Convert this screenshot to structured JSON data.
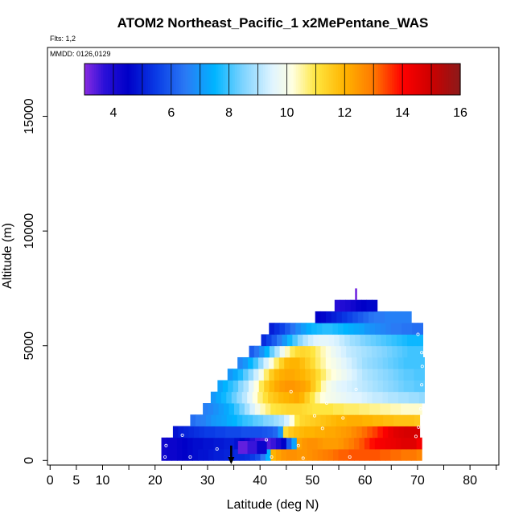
{
  "chart_data": {
    "type": "heatmap",
    "title": "ATOM2 Northeast_Pacific_1 x2MePentane_WAS",
    "flights_label": "Flts: 1,2",
    "mmdd_label": "MMDD: 0126,0129",
    "xlabel": "Latitude (deg N)",
    "ylabel": "Altitude (m)",
    "xlim": [
      -0.5,
      85.5
    ],
    "ylim": [
      -200,
      18000
    ],
    "x_ticks": [
      0,
      5,
      10,
      20,
      30,
      40,
      50,
      60,
      70,
      80
    ],
    "x_minor_ticks": [
      15,
      25,
      35,
      45,
      55,
      65,
      75,
      85
    ],
    "y_ticks": [
      0,
      5000,
      10000,
      15000
    ],
    "colorbar": {
      "min": 3,
      "max": 16,
      "ticks": [
        4,
        6,
        8,
        10,
        12,
        14,
        16
      ],
      "stops": [
        {
          "v": 3.0,
          "c": "#8a2be2"
        },
        {
          "v": 3.7,
          "c": "#2a10d8"
        },
        {
          "v": 4.5,
          "c": "#0000c8"
        },
        {
          "v": 5.5,
          "c": "#0a3ce6"
        },
        {
          "v": 6.5,
          "c": "#2a7af5"
        },
        {
          "v": 7.5,
          "c": "#00b4ff"
        },
        {
          "v": 8.5,
          "c": "#80d4ff"
        },
        {
          "v": 9.5,
          "c": "#e0f4ff"
        },
        {
          "v": 10.2,
          "c": "#ffffe0"
        },
        {
          "v": 11.0,
          "c": "#ffe640"
        },
        {
          "v": 12.0,
          "c": "#ffb400"
        },
        {
          "v": 13.0,
          "c": "#ff7800"
        },
        {
          "v": 14.0,
          "c": "#ff0000"
        },
        {
          "v": 15.0,
          "c": "#cc0000"
        },
        {
          "v": 16.0,
          "c": "#8b1a1a"
        }
      ]
    },
    "layers": [
      {
        "alt": [
          0,
          500
        ],
        "lat": [
          21.2,
          70.8
        ],
        "values": [
          4.2,
          4.3,
          4.3,
          4.4,
          4.5,
          4.6,
          4.7,
          4.8,
          4.8,
          4.9,
          5.0,
          5.0,
          5.1,
          5.1,
          5.2,
          5.2,
          5.3,
          5.5,
          5.8,
          6.5,
          7.5,
          12.0,
          12.3,
          12.5,
          12.6,
          12.6,
          12.5,
          12.5,
          12.6,
          12.7,
          12.8,
          12.9,
          13.0,
          13.1,
          13.2,
          13.2,
          13.3,
          13.3,
          13.3,
          13.3,
          13.3,
          13.3,
          13.2,
          13.2,
          13.1,
          13.1,
          13.0,
          13.0,
          13.0,
          12.8
        ]
      },
      {
        "alt": [
          500,
          1000
        ],
        "lat": [
          21.2,
          70.8
        ],
        "values": [
          4.2,
          4.3,
          4.3,
          4.4,
          4.5,
          4.6,
          4.7,
          4.7,
          4.8,
          4.8,
          4.9,
          4.9,
          5.0,
          5.0,
          4.8,
          4.6,
          4.2,
          3.8,
          3.5,
          3.4,
          3.4,
          3.6,
          4.0,
          4.5,
          6.0,
          7.2,
          12.3,
          12.5,
          12.6,
          12.6,
          12.5,
          12.4,
          12.4,
          12.4,
          12.5,
          12.7,
          12.9,
          13.1,
          13.3,
          13.6,
          13.9,
          14.1,
          14.2,
          14.3,
          14.4,
          14.5,
          14.6,
          14.6,
          14.6,
          14.2
        ]
      },
      {
        "alt": [
          1000,
          1500
        ],
        "lat": [
          23.4,
          70.4
        ],
        "values": [
          4.8,
          5.0,
          5.1,
          5.2,
          5.3,
          5.4,
          5.5,
          5.5,
          5.6,
          5.6,
          5.7,
          5.7,
          5.7,
          5.8,
          5.8,
          5.8,
          5.8,
          5.9,
          6.0,
          6.2,
          7.0,
          11.2,
          11.6,
          11.8,
          11.9,
          12.0,
          12.0,
          12.1,
          12.1,
          12.2,
          12.2,
          12.3,
          12.4,
          12.5,
          12.7,
          12.9,
          13.1,
          13.3,
          13.5,
          13.8,
          14.1,
          14.4,
          14.6,
          14.7,
          14.8,
          14.8,
          14.8
        ]
      },
      {
        "alt": [
          1500,
          2000
        ],
        "lat": [
          26.7,
          70.4
        ],
        "values": [
          6.3,
          6.5,
          6.6,
          6.8,
          7.0,
          7.1,
          7.2,
          7.4,
          7.5,
          7.7,
          7.9,
          8.0,
          8.2,
          8.3,
          8.5,
          8.6,
          8.8,
          9.0,
          9.4,
          10.2,
          11.0,
          11.3,
          11.4,
          11.5,
          11.6,
          11.7,
          11.8,
          11.9,
          12.0,
          12.0,
          12.1,
          12.1,
          12.1,
          12.0,
          12.0,
          11.9,
          11.9,
          11.8,
          11.8,
          11.7,
          11.7,
          11.7,
          11.7,
          11.6
        ]
      },
      {
        "alt": [
          2000,
          2500
        ],
        "lat": [
          29.1,
          70.8
        ],
        "values": [
          6.6,
          6.7,
          6.9,
          7.1,
          7.3,
          7.6,
          8.0,
          8.4,
          8.9,
          9.4,
          9.9,
          10.4,
          10.7,
          11.0,
          11.1,
          11.2,
          11.3,
          11.3,
          11.3,
          11.2,
          11.1,
          11.0,
          11.0,
          11.0,
          11.0,
          10.9,
          10.9,
          10.8,
          10.8,
          10.8,
          10.7,
          10.7,
          10.6,
          10.6,
          10.5,
          10.5,
          10.4,
          10.4,
          10.3,
          10.3,
          10.3,
          10.3
        ]
      },
      {
        "alt": [
          2500,
          3000
        ],
        "lat": [
          30.6,
          71.3
        ],
        "values": [
          7.0,
          7.3,
          7.6,
          7.9,
          8.3,
          8.7,
          9.1,
          9.6,
          10.2,
          10.7,
          11.1,
          11.5,
          11.7,
          11.9,
          12.0,
          12.1,
          12.2,
          12.0,
          11.5,
          11.0,
          10.5,
          10.2,
          10.0,
          9.9,
          9.8,
          9.7,
          9.6,
          9.5,
          9.5,
          9.4,
          9.3,
          9.2,
          9.2,
          9.1,
          9.0,
          9.0,
          8.9,
          8.9,
          8.8,
          8.8,
          8.7
        ]
      },
      {
        "alt": [
          3000,
          3500
        ],
        "lat": [
          31.9,
          71.3
        ],
        "values": [
          7.2,
          7.5,
          7.8,
          8.1,
          8.6,
          9.0,
          9.6,
          10.2,
          10.9,
          11.5,
          11.9,
          12.2,
          12.4,
          12.5,
          12.5,
          12.4,
          12.3,
          12.1,
          11.6,
          11.0,
          10.4,
          10.0,
          9.8,
          9.6,
          9.5,
          9.4,
          9.3,
          9.2,
          9.1,
          9.0,
          8.9,
          8.8,
          8.7,
          8.6,
          8.5,
          8.4,
          8.3,
          8.3,
          8.2,
          8.2
        ]
      },
      {
        "alt": [
          3500,
          4000
        ],
        "lat": [
          33.8,
          71.3
        ],
        "values": [
          7.0,
          7.3,
          7.7,
          8.2,
          8.7,
          9.3,
          10.0,
          10.8,
          11.5,
          11.9,
          12.1,
          12.2,
          12.2,
          12.1,
          12.0,
          11.8,
          11.6,
          11.2,
          10.8,
          10.4,
          10.2,
          10.0,
          9.8,
          9.6,
          9.4,
          9.2,
          9.0,
          8.9,
          8.8,
          8.7,
          8.6,
          8.5,
          8.4,
          8.3,
          8.2,
          8.2,
          8.1,
          8.1
        ]
      },
      {
        "alt": [
          4000,
          4500
        ],
        "lat": [
          35.7,
          71.3
        ],
        "values": [
          6.7,
          7.0,
          7.5,
          8.0,
          8.7,
          9.4,
          10.1,
          10.8,
          11.4,
          11.9,
          12.0,
          12.0,
          11.8,
          11.5,
          11.2,
          10.8,
          10.5,
          10.2,
          10.0,
          9.8,
          9.6,
          9.4,
          9.2,
          9.0,
          8.8,
          8.7,
          8.6,
          8.5,
          8.4,
          8.3,
          8.2,
          8.1,
          8.0,
          8.0,
          8.0,
          8.0
        ]
      },
      {
        "alt": [
          4500,
          5000
        ],
        "lat": [
          37.9,
          71.0
        ],
        "values": [
          6.0,
          6.4,
          6.9,
          7.5,
          8.3,
          9.0,
          9.8,
          10.4,
          10.9,
          11.2,
          11.3,
          11.2,
          11.0,
          10.7,
          10.4,
          10.1,
          9.8,
          9.6,
          9.4,
          9.2,
          9.1,
          9.0,
          8.9,
          8.8,
          8.7,
          8.6,
          8.5,
          8.4,
          8.3,
          8.2,
          8.1,
          8.0,
          8.0,
          8.0
        ]
      },
      {
        "alt": [
          5000,
          5500
        ],
        "lat": [
          40.2,
          71.0
        ],
        "values": [
          5.2,
          5.6,
          6.0,
          6.5,
          7.0,
          7.6,
          8.1,
          8.6,
          9.0,
          9.3,
          9.5,
          9.6,
          9.6,
          9.5,
          9.4,
          9.2,
          9.0,
          8.8,
          8.7,
          8.5,
          8.4,
          8.3,
          8.2,
          8.1,
          8.0,
          7.9,
          7.8,
          7.7,
          7.6,
          7.6,
          7.6
        ]
      },
      {
        "alt": [
          5500,
          6000
        ],
        "lat": [
          41.7,
          71.0
        ],
        "values": [
          5.0,
          5.3,
          5.6,
          6.0,
          6.4,
          6.8,
          7.1,
          7.4,
          7.6,
          7.7,
          7.8,
          7.8,
          7.7,
          7.6,
          7.5,
          7.4,
          7.3,
          7.2,
          7.0,
          6.9,
          6.8,
          6.7,
          6.6,
          6.5,
          6.5,
          6.4,
          6.4,
          6.3,
          6.3
        ]
      },
      {
        "alt": [
          6000,
          6500
        ],
        "lat": [
          50.5,
          68.8
        ],
        "values": [
          4.5,
          4.6,
          4.8,
          5.0,
          5.2,
          5.4,
          5.6,
          5.8,
          6.0,
          6.2,
          6.4,
          6.5,
          6.5,
          6.6,
          6.6,
          6.6,
          6.6,
          6.6
        ]
      },
      {
        "alt": [
          6500,
          7000
        ],
        "lat": [
          54.2,
          62.3
        ],
        "values": [
          3.8,
          3.9,
          4.0,
          4.2,
          4.4,
          4.5,
          4.6,
          4.6
        ]
      },
      {
        "alt": [
          7000,
          7500
        ],
        "lat": [
          58.1,
          58.4
        ],
        "values": [
          3.2
        ]
      }
    ],
    "low_band": {
      "alt": [
        300,
        850
      ],
      "lat": [
        35.8,
        41.2
      ],
      "values": [
        3.3,
        3.6,
        4.3
      ]
    },
    "arrow_lat": 34.5,
    "sample_points": [
      [
        22.1,
        650
      ],
      [
        21.9,
        150
      ],
      [
        25.2,
        1100
      ],
      [
        26.7,
        150
      ],
      [
        31.8,
        500
      ],
      [
        34.4,
        100
      ],
      [
        41.2,
        900
      ],
      [
        42.2,
        150
      ],
      [
        47.3,
        650
      ],
      [
        48.2,
        100
      ],
      [
        51.9,
        1400
      ],
      [
        52.7,
        2500
      ],
      [
        55.8,
        1850
      ],
      [
        57.1,
        150
      ],
      [
        58.3,
        3100
      ],
      [
        69.7,
        1050
      ],
      [
        70.2,
        1450
      ],
      [
        70.6,
        2250
      ],
      [
        70.8,
        3300
      ],
      [
        70.9,
        4100
      ],
      [
        70.8,
        4700
      ],
      [
        70.1,
        5500
      ],
      [
        50.4,
        1950
      ],
      [
        45.9,
        3000
      ]
    ]
  }
}
